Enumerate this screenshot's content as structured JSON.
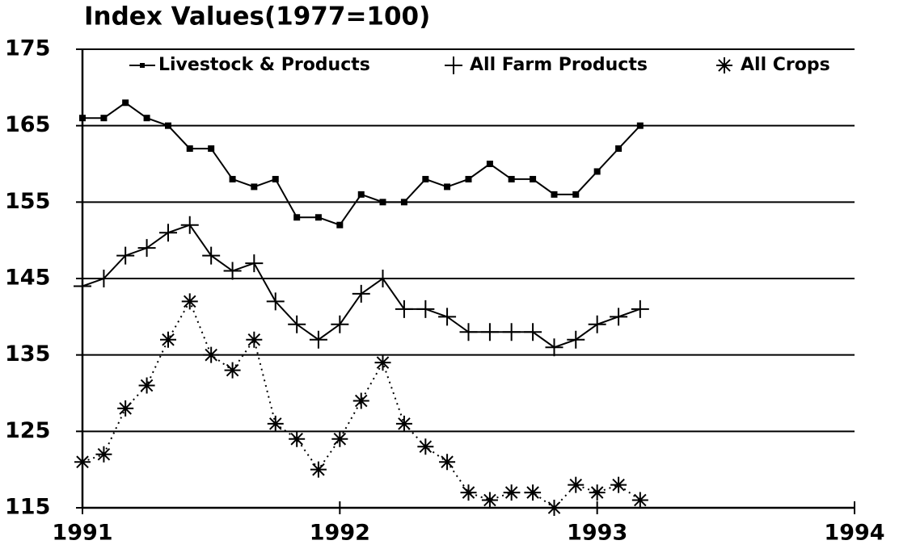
{
  "chart_data": {
    "type": "line",
    "title": "Index Values(1977=100)",
    "x": [
      1991,
      1991.083,
      1991.167,
      1991.25,
      1991.333,
      1991.417,
      1991.5,
      1991.583,
      1991.667,
      1991.75,
      1991.833,
      1991.917,
      1992,
      1992.083,
      1992.167,
      1992.25,
      1992.333,
      1992.417,
      1992.5,
      1992.583,
      1992.667,
      1992.75,
      1992.833,
      1992.917,
      1993,
      1993.083,
      1993.167
    ],
    "series": [
      {
        "name": "Livestock & Products",
        "color": "#000000",
        "marker": "square",
        "line_style": "solid",
        "values": [
          166,
          166,
          168,
          166,
          165,
          162,
          162,
          158,
          157,
          158,
          153,
          153,
          152,
          156,
          155,
          155,
          158,
          157,
          158,
          160,
          158,
          158,
          156,
          156,
          159,
          162,
          165
        ]
      },
      {
        "name": "All Farm Products",
        "color": "#000000",
        "marker": "plus",
        "line_style": "solid",
        "values": [
          144,
          145,
          148,
          149,
          151,
          152,
          148,
          146,
          147,
          142,
          139,
          137,
          139,
          143,
          145,
          141,
          141,
          140,
          138,
          138,
          138,
          138,
          136,
          137,
          139,
          140,
          141
        ]
      },
      {
        "name": "All Crops",
        "color": "#000000",
        "marker": "asterisk",
        "line_style": "dotted",
        "values": [
          121,
          122,
          128,
          131,
          137,
          142,
          135,
          133,
          137,
          126,
          124,
          120,
          124,
          129,
          134,
          126,
          123,
          121,
          117,
          116,
          117,
          117,
          115,
          118,
          117,
          118,
          116
        ]
      }
    ],
    "xlim": [
      1991,
      1994
    ],
    "xticks": [
      1991,
      1992,
      1993,
      1994
    ],
    "ylim": [
      115,
      175
    ],
    "yticks": [
      115,
      125,
      135,
      145,
      155,
      165,
      175
    ],
    "grid": true,
    "legend": "top"
  }
}
